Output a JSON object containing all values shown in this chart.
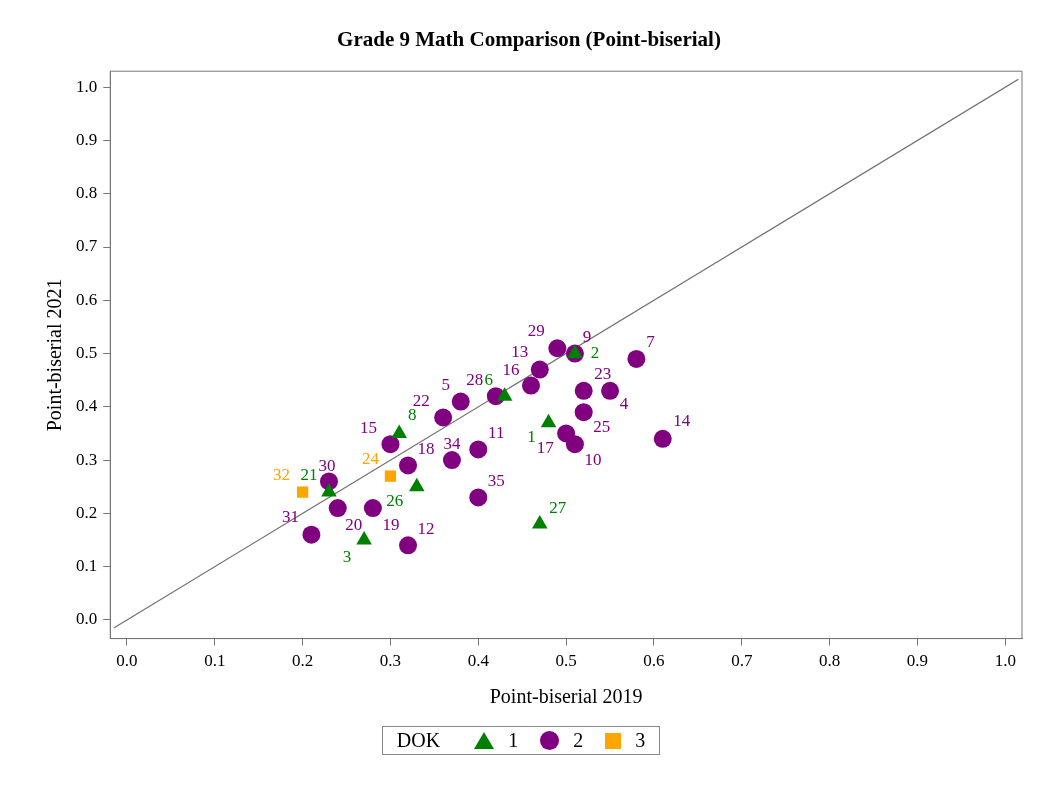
{
  "chart_data": {
    "type": "scatter",
    "title": "Grade 9 Math Comparison (Point-biserial)",
    "xlabel": "Point-biserial 2019",
    "ylabel": "Point-biserial 2021",
    "legend_title": "DOK",
    "legend": "bottom",
    "grid": false,
    "xlim": [
      -0.019,
      1.019
    ],
    "ylim": [
      -0.035,
      1.03
    ],
    "xticks": [
      {
        "value": 0,
        "label": "0.0"
      },
      0.1,
      0.2,
      0.3,
      0.4,
      0.5,
      0.6,
      0.7,
      0.8,
      0.9,
      {
        "value": 1,
        "label": "1.0"
      }
    ],
    "yticks": [
      {
        "value": 0,
        "label": "0.0"
      },
      0.1,
      0.2,
      0.3,
      0.4,
      0.5,
      0.6,
      0.7,
      0.8,
      0.9,
      {
        "value": 1,
        "label": "1.0"
      }
    ],
    "series": [
      {
        "name": "1",
        "color": "#008000",
        "marker": "triangle",
        "x": [
          0.48,
          0.51,
          0.27,
          0.43,
          0.31,
          0.23,
          0.33,
          0.47
        ],
        "values": [
          0.37,
          0.5,
          0.15,
          0.42,
          0.35,
          0.24,
          0.25,
          0.18
        ]
      },
      {
        "name": "2",
        "color": "#800080",
        "marker": "circle",
        "x": [
          0.55,
          0.38,
          0.58,
          0.51,
          0.51,
          0.4,
          0.32,
          0.47,
          0.61,
          0.3,
          0.46,
          0.5,
          0.32,
          0.28,
          0.24,
          0.36,
          0.52,
          0.52,
          0.42,
          0.49,
          0.23,
          0.21,
          0.37,
          0.4
        ],
        "values": [
          0.43,
          0.41,
          0.49,
          0.5,
          0.33,
          0.32,
          0.14,
          0.47,
          0.34,
          0.33,
          0.44,
          0.35,
          0.29,
          0.21,
          0.21,
          0.38,
          0.43,
          0.39,
          0.42,
          0.51,
          0.26,
          0.16,
          0.3,
          0.23
        ]
      },
      {
        "name": "3",
        "color": "#ffa500",
        "marker": "square",
        "x": [
          0.3,
          0.2
        ],
        "values": [
          0.27,
          0.24
        ]
      },
      {
        "type": "line",
        "color": "#707070",
        "marker": "none",
        "x": [
          -0.015,
          1.015
        ],
        "values": [
          -0.015,
          1.015
        ]
      }
    ],
    "annotations": [
      {
        "text": "1",
        "x": 0.48,
        "y": 0.37
      },
      {
        "text": "2",
        "x": 0.51,
        "y": 0.5
      },
      {
        "text": "3",
        "x": 0.27,
        "y": 0.15
      },
      {
        "text": "6",
        "x": 0.43,
        "y": 0.42
      },
      {
        "text": "8",
        "x": 0.31,
        "y": 0.35
      },
      {
        "text": "21",
        "x": 0.23,
        "y": 0.24
      },
      {
        "text": "26",
        "x": 0.33,
        "y": 0.25
      },
      {
        "text": "27",
        "x": 0.47,
        "y": 0.18
      },
      {
        "text": "4",
        "x": 0.55,
        "y": 0.43
      },
      {
        "text": "5",
        "x": 0.38,
        "y": 0.41
      },
      {
        "text": "7",
        "x": 0.58,
        "y": 0.49
      },
      {
        "text": "9",
        "x": 0.51,
        "y": 0.5
      },
      {
        "text": "10",
        "x": 0.51,
        "y": 0.33
      },
      {
        "text": "11",
        "x": 0.4,
        "y": 0.32
      },
      {
        "text": "12",
        "x": 0.32,
        "y": 0.14
      },
      {
        "text": "13",
        "x": 0.47,
        "y": 0.47
      },
      {
        "text": "14",
        "x": 0.61,
        "y": 0.34
      },
      {
        "text": "15",
        "x": 0.3,
        "y": 0.33
      },
      {
        "text": "16",
        "x": 0.46,
        "y": 0.44
      },
      {
        "text": "17",
        "x": 0.5,
        "y": 0.35
      },
      {
        "text": "18",
        "x": 0.32,
        "y": 0.29
      },
      {
        "text": "19",
        "x": 0.28,
        "y": 0.21
      },
      {
        "text": "20",
        "x": 0.24,
        "y": 0.21
      },
      {
        "text": "22",
        "x": 0.36,
        "y": 0.38
      },
      {
        "text": "23",
        "x": 0.52,
        "y": 0.43
      },
      {
        "text": "25",
        "x": 0.52,
        "y": 0.39
      },
      {
        "text": "28",
        "x": 0.42,
        "y": 0.42
      },
      {
        "text": "29",
        "x": 0.49,
        "y": 0.51
      },
      {
        "text": "30",
        "x": 0.23,
        "y": 0.26
      },
      {
        "text": "31",
        "x": 0.21,
        "y": 0.16
      },
      {
        "text": "34",
        "x": 0.37,
        "y": 0.3
      },
      {
        "text": "35",
        "x": 0.4,
        "y": 0.23
      },
      {
        "text": "24",
        "x": 0.3,
        "y": 0.27
      },
      {
        "text": "32",
        "x": 0.2,
        "y": 0.24
      }
    ]
  }
}
